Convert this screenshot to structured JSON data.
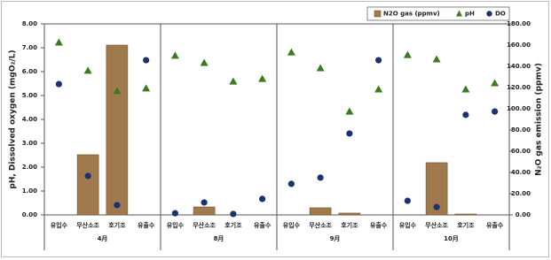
{
  "chart_data": {
    "type": "combo",
    "y_label": "pH, Dissolved oxygen (mgO₂/L)",
    "y2_label": "N₂O gas emission (ppmv)",
    "groups": [
      "4月",
      "8月",
      "9月",
      "10月"
    ],
    "categories": [
      "유입수",
      "무산소조",
      "호기조",
      "유출수",
      "유입수",
      "무산소조",
      "호기조",
      "유출수",
      "유입수",
      "무산소조",
      "호기조",
      "유출수",
      "유입수",
      "무산소조",
      "호기조",
      "유출수"
    ],
    "ylim": [
      0,
      8
    ],
    "yticks": [
      {
        "value": 0,
        "label": "0.00"
      },
      {
        "value": 1,
        "label": "1.00"
      },
      {
        "value": 2,
        "label": "2.00"
      },
      {
        "value": 3,
        "label": "3.00"
      },
      {
        "value": 4,
        "label": "4.00"
      },
      {
        "value": 5,
        "label": "5.00"
      },
      {
        "value": 6,
        "label": "6.00"
      },
      {
        "value": 7,
        "label": "7.00"
      },
      {
        "value": 8,
        "label": "8.00"
      }
    ],
    "y2lim": [
      0,
      180
    ],
    "y2ticks": [
      {
        "value": 0,
        "label": "0.00"
      },
      {
        "value": 20,
        "label": "20.00"
      },
      {
        "value": 40,
        "label": "40.00"
      },
      {
        "value": 60,
        "label": "60.00"
      },
      {
        "value": 80,
        "label": "80.00"
      },
      {
        "value": 100,
        "label": "100.00"
      },
      {
        "value": 120,
        "label": "120.00"
      },
      {
        "value": 140,
        "label": "140.00"
      },
      {
        "value": 160,
        "label": "160.00"
      },
      {
        "value": 180,
        "label": "180.00"
      }
    ],
    "legend": "top-right",
    "series": [
      {
        "name": "N2O gas (ppmv)",
        "type": "bar",
        "axis": "y2",
        "color": "#a07a4c",
        "values": [
          null,
          56.7,
          160,
          null,
          null,
          7.5,
          null,
          null,
          null,
          6.7,
          1.7,
          null,
          null,
          49.2,
          0.8,
          null
        ]
      },
      {
        "name": "pH",
        "type": "scatter",
        "marker": "triangle",
        "color": "#3b7a1e",
        "values": [
          7.22,
          6.04,
          5.19,
          5.3,
          6.67,
          6.37,
          5.59,
          5.7,
          6.81,
          6.15,
          4.33,
          5.26,
          6.7,
          6.52,
          5.26,
          5.52
        ]
      },
      {
        "name": "DO",
        "type": "scatter",
        "marker": "circle",
        "color": "#1a3272",
        "values": [
          5.48,
          1.63,
          0.41,
          6.48,
          0.07,
          0.52,
          0.04,
          0.67,
          1.3,
          1.56,
          3.41,
          6.48,
          0.59,
          0.33,
          4.19,
          4.33
        ]
      }
    ]
  }
}
